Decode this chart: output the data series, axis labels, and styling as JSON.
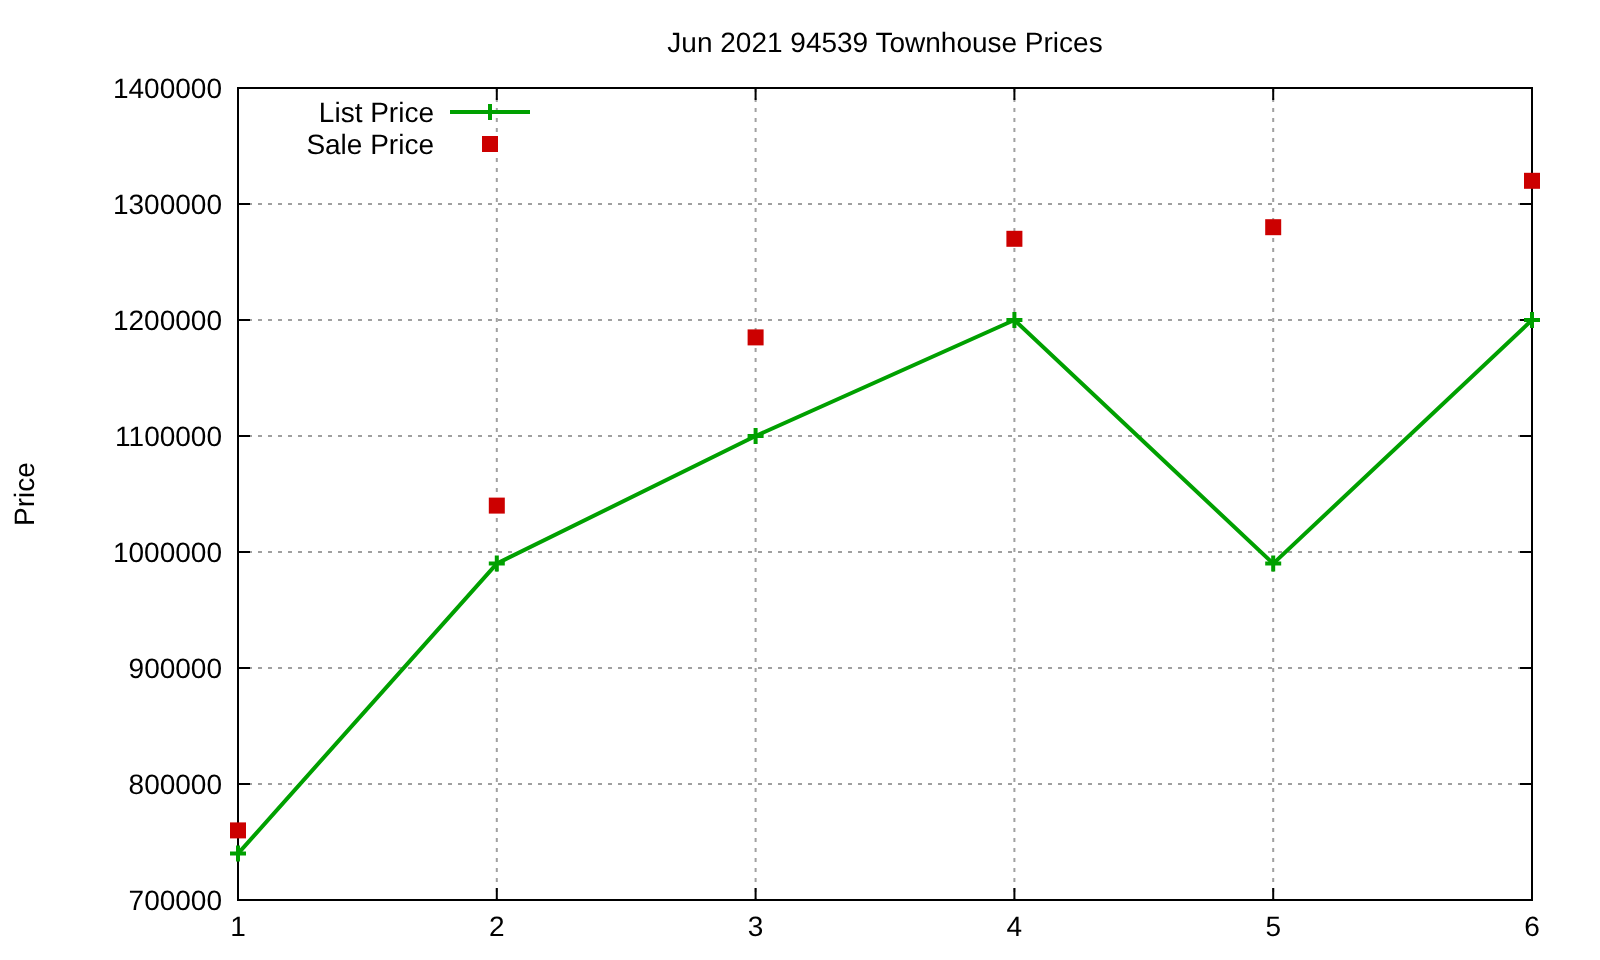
{
  "chart_data": {
    "type": "line",
    "title": "Jun 2021 94539 Townhouse Prices",
    "ylabel": "Price",
    "x": [
      1,
      2,
      3,
      4,
      5,
      6
    ],
    "xlim": [
      1,
      6
    ],
    "xticks": [
      1,
      2,
      3,
      4,
      5,
      6
    ],
    "ylim": [
      700000,
      1400000
    ],
    "yticks": [
      700000,
      800000,
      900000,
      1000000,
      1100000,
      1200000,
      1300000,
      1400000
    ],
    "grid": true,
    "legend": "top left",
    "series": [
      {
        "name": "List Price",
        "marker": "cross",
        "color": "#00a000",
        "values": [
          740000,
          990000,
          1100000,
          1200000,
          990000,
          1200000
        ]
      },
      {
        "name": "Sale Price",
        "type": "scatter",
        "marker": "square",
        "color": "#cc0000",
        "values": [
          760000,
          1040000,
          1185000,
          1270000,
          1280000,
          1320000
        ]
      }
    ]
  }
}
